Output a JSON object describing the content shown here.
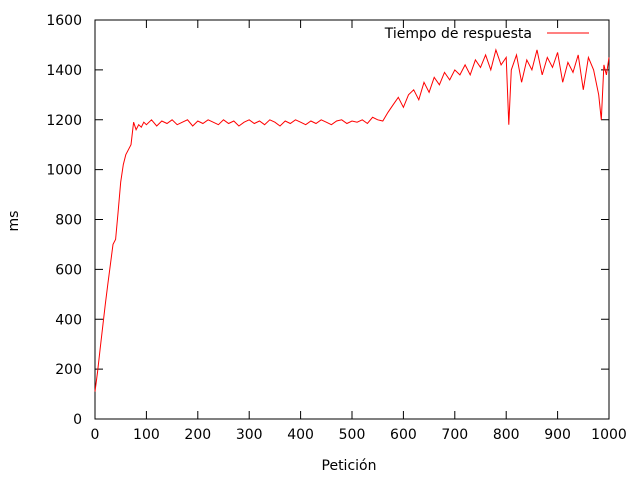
{
  "chart_data": {
    "type": "line",
    "title": "",
    "xlabel": "Petición",
    "ylabel": "ms",
    "xlim": [
      0,
      1000
    ],
    "ylim": [
      0,
      1600
    ],
    "x_ticks": [
      0,
      100,
      200,
      300,
      400,
      500,
      600,
      700,
      800,
      900,
      1000
    ],
    "y_ticks": [
      0,
      200,
      400,
      600,
      800,
      1000,
      1200,
      1400,
      1600
    ],
    "grid": false,
    "legend_position": "top-right",
    "series": [
      {
        "name": "Tiempo de respuesta",
        "color": "#ff0000",
        "x": [
          0,
          5,
          10,
          15,
          20,
          25,
          30,
          35,
          40,
          45,
          50,
          55,
          60,
          65,
          70,
          75,
          80,
          85,
          90,
          95,
          100,
          110,
          120,
          130,
          140,
          150,
          160,
          170,
          180,
          190,
          200,
          210,
          220,
          230,
          240,
          250,
          260,
          270,
          280,
          290,
          300,
          310,
          320,
          330,
          340,
          350,
          360,
          370,
          380,
          390,
          400,
          410,
          420,
          430,
          440,
          450,
          460,
          470,
          480,
          490,
          500,
          510,
          520,
          530,
          540,
          550,
          560,
          570,
          580,
          590,
          600,
          610,
          620,
          630,
          640,
          650,
          660,
          670,
          680,
          690,
          700,
          710,
          720,
          730,
          740,
          750,
          760,
          770,
          780,
          790,
          800,
          805,
          810,
          820,
          830,
          840,
          850,
          860,
          870,
          880,
          890,
          900,
          910,
          920,
          930,
          940,
          950,
          960,
          970,
          980,
          985,
          990,
          995,
          1000
        ],
        "values": [
          110,
          190,
          280,
          370,
          460,
          540,
          620,
          700,
          720,
          830,
          950,
          1020,
          1060,
          1080,
          1100,
          1190,
          1160,
          1180,
          1170,
          1190,
          1180,
          1200,
          1175,
          1195,
          1185,
          1200,
          1180,
          1190,
          1200,
          1175,
          1195,
          1185,
          1200,
          1190,
          1180,
          1200,
          1185,
          1195,
          1175,
          1190,
          1200,
          1185,
          1195,
          1180,
          1200,
          1190,
          1175,
          1195,
          1185,
          1200,
          1190,
          1180,
          1195,
          1185,
          1200,
          1190,
          1180,
          1195,
          1200,
          1185,
          1195,
          1190,
          1200,
          1185,
          1210,
          1200,
          1195,
          1230,
          1260,
          1290,
          1250,
          1300,
          1320,
          1280,
          1350,
          1310,
          1370,
          1340,
          1390,
          1360,
          1400,
          1380,
          1420,
          1380,
          1440,
          1410,
          1460,
          1400,
          1480,
          1420,
          1450,
          1180,
          1400,
          1460,
          1350,
          1440,
          1400,
          1480,
          1380,
          1450,
          1410,
          1470,
          1350,
          1430,
          1390,
          1460,
          1320,
          1450,
          1400,
          1300,
          1200,
          1420,
          1380,
          1450
        ]
      }
    ]
  }
}
